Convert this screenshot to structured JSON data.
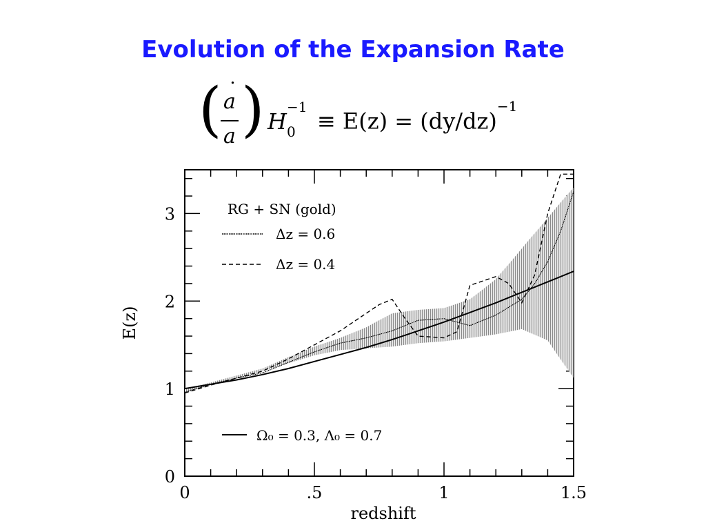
{
  "slide": {
    "title": "Evolution of the Expansion Rate"
  },
  "equation": {
    "numerator": "a",
    "denominator": "a",
    "left_symbol": "H",
    "sup": "−1",
    "sub": "0",
    "rhs": "≡ E(z) = (dy/dz)",
    "rhs_sup": "−1"
  },
  "chart_data": {
    "type": "line",
    "xlabel": "redshift",
    "ylabel": "E(z)",
    "xlim": [
      0,
      1.5
    ],
    "ylim": [
      0,
      3.5
    ],
    "xticks": [
      0,
      0.5,
      1,
      1.5
    ],
    "xtick_labels": [
      "0",
      ".5",
      "1",
      "1.5"
    ],
    "yticks": [
      0,
      1,
      2,
      3
    ],
    "ytick_labels": [
      "0",
      "1",
      "2",
      "3"
    ],
    "grid": false,
    "legend": {
      "title": "RG + SN (gold)",
      "entries": [
        {
          "label": "Δz  =  0.6",
          "style": "dotted"
        },
        {
          "label": "Δz  =  0.4",
          "style": "dashed"
        }
      ],
      "model_label": "Ω₀  =  0.3,  Λ₀  =  0.7",
      "placement": "top-left"
    },
    "series": [
      {
        "name": "Δz  =  0.6",
        "style": "dotted",
        "x": [
          0,
          0.1,
          0.2,
          0.3,
          0.4,
          0.5,
          0.6,
          0.7,
          0.8,
          0.9,
          1.0,
          1.1,
          1.2,
          1.3,
          1.35,
          1.4,
          1.45,
          1.5
        ],
        "y": [
          0.96,
          1.05,
          1.12,
          1.18,
          1.3,
          1.42,
          1.52,
          1.58,
          1.66,
          1.78,
          1.8,
          1.72,
          1.84,
          2.02,
          2.2,
          2.45,
          2.8,
          3.25
        ]
      },
      {
        "name": "Δz  =  0.4",
        "style": "dashed",
        "x": [
          0,
          0.1,
          0.2,
          0.3,
          0.4,
          0.5,
          0.6,
          0.7,
          0.75,
          0.8,
          0.85,
          0.9,
          1.0,
          1.05,
          1.1,
          1.2,
          1.25,
          1.3,
          1.35,
          1.4,
          1.45,
          1.5
        ],
        "y": [
          0.95,
          1.04,
          1.12,
          1.2,
          1.34,
          1.5,
          1.66,
          1.86,
          1.96,
          2.02,
          1.8,
          1.6,
          1.58,
          1.65,
          2.18,
          2.28,
          2.2,
          1.98,
          2.3,
          3.0,
          3.45,
          3.45
        ]
      },
      {
        "name": "shaded uncertainty band",
        "style": "band",
        "x": [
          0,
          0.1,
          0.2,
          0.3,
          0.4,
          0.5,
          0.6,
          0.7,
          0.8,
          0.9,
          1.0,
          1.1,
          1.2,
          1.3,
          1.4,
          1.5
        ],
        "y_low": [
          0.95,
          1.04,
          1.12,
          1.2,
          1.29,
          1.38,
          1.44,
          1.46,
          1.48,
          1.52,
          1.54,
          1.58,
          1.62,
          1.68,
          1.55,
          1.12
        ],
        "y_high": [
          1.0,
          1.07,
          1.15,
          1.23,
          1.36,
          1.48,
          1.58,
          1.7,
          1.86,
          1.9,
          1.92,
          2.02,
          2.25,
          2.6,
          2.95,
          3.3
        ]
      },
      {
        "name": "Ω₀  =  0.3,  Λ₀  =  0.7",
        "style": "solid",
        "x": [
          0,
          0.1,
          0.2,
          0.3,
          0.4,
          0.5,
          0.6,
          0.7,
          0.8,
          0.9,
          1.0,
          1.1,
          1.2,
          1.3,
          1.4,
          1.5
        ],
        "y": [
          1.0,
          1.05,
          1.1,
          1.16,
          1.23,
          1.31,
          1.39,
          1.47,
          1.56,
          1.66,
          1.76,
          1.87,
          1.98,
          2.1,
          2.22,
          2.34
        ]
      }
    ]
  }
}
